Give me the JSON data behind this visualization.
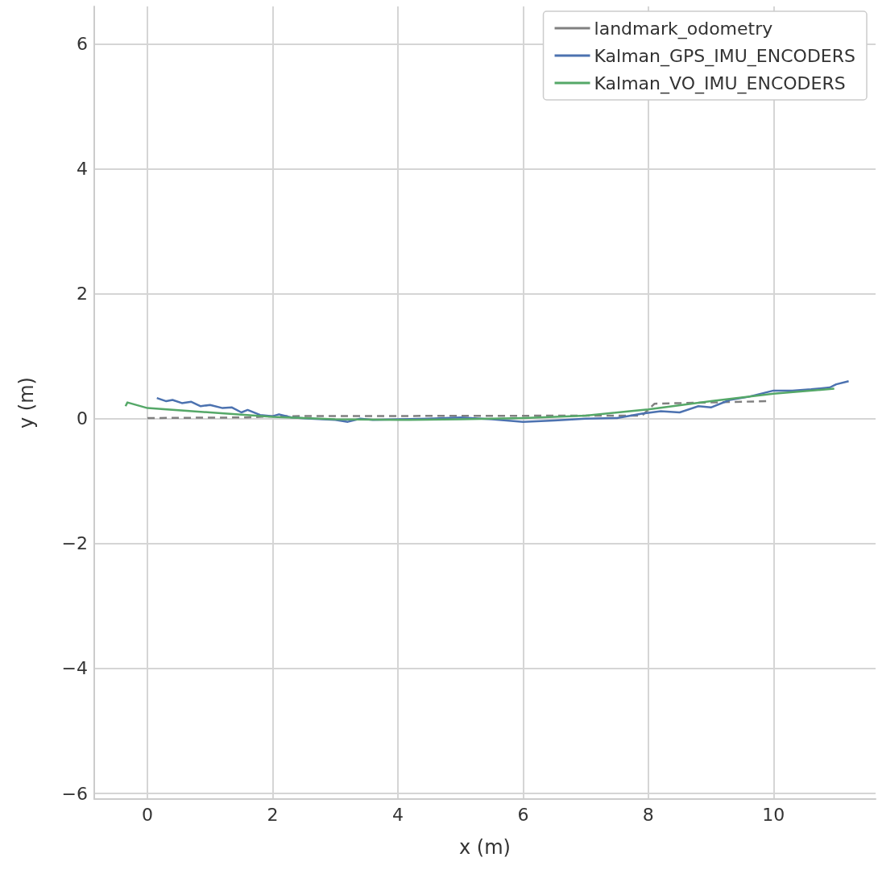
{
  "chart_data": {
    "type": "line",
    "xlabel": "x (m)",
    "ylabel": "y (m)",
    "xlim": [
      -0.85,
      11.63
    ],
    "ylim": [
      -6.09,
      6.6
    ],
    "xticks": [
      0,
      2,
      4,
      6,
      8,
      10
    ],
    "yticks": [
      -6,
      -4,
      -2,
      0,
      2,
      4,
      6
    ],
    "grid": true,
    "legend": "top right",
    "marker": "none",
    "series": [
      {
        "name": "landmark_odometry",
        "color": "#808080",
        "line_style": "dashed",
        "x": [
          0,
          1.6,
          2,
          7.9,
          8.1,
          9.9
        ],
        "values": [
          0.01,
          0.02,
          0.04,
          0.05,
          0.24,
          0.28
        ]
      },
      {
        "name": "Kalman_GPS_IMU_ENCODERS",
        "color": "#4c72b0",
        "line_style": "solid",
        "x": [
          0.15,
          0.3,
          0.4,
          0.55,
          0.7,
          0.85,
          1.0,
          1.2,
          1.35,
          1.5,
          1.6,
          1.8,
          2.0,
          2.1,
          2.3,
          2.6,
          3.0,
          3.2,
          3.4,
          3.6,
          4.0,
          4.5,
          5.0,
          5.5,
          6.0,
          6.5,
          7.0,
          7.5,
          7.9,
          8.2,
          8.5,
          8.8,
          9.0,
          9.3,
          9.6,
          10.0,
          10.3,
          10.6,
          10.9,
          11.0,
          11.2
        ],
        "values": [
          0.33,
          0.28,
          0.3,
          0.25,
          0.27,
          0.2,
          0.22,
          0.17,
          0.18,
          0.1,
          0.14,
          0.06,
          0.04,
          0.07,
          0.02,
          0.0,
          -0.02,
          -0.05,
          0.0,
          -0.02,
          -0.01,
          0.0,
          0.02,
          -0.01,
          -0.05,
          -0.03,
          0.0,
          0.01,
          0.08,
          0.12,
          0.1,
          0.2,
          0.18,
          0.3,
          0.35,
          0.45,
          0.45,
          0.47,
          0.5,
          0.55,
          0.6
        ]
      },
      {
        "name": "Kalman_VO_IMU_ENCODERS",
        "color": "#55a868",
        "line_style": "solid",
        "x": [
          -0.35,
          -0.32,
          0,
          1,
          2,
          3,
          4,
          5,
          6,
          7,
          8,
          9,
          10,
          10.97
        ],
        "values": [
          0.2,
          0.26,
          0.17,
          0.1,
          0.03,
          -0.01,
          -0.02,
          -0.01,
          0.01,
          0.05,
          0.15,
          0.28,
          0.4,
          0.48
        ]
      }
    ]
  }
}
